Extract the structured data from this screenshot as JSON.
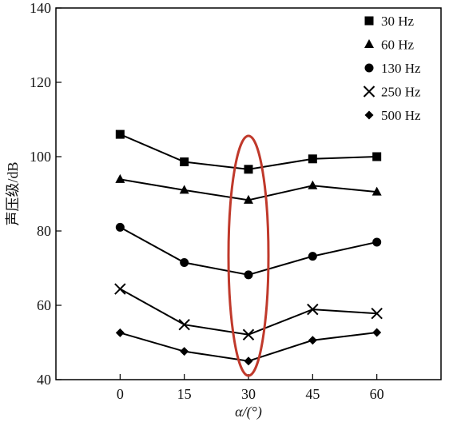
{
  "chart_data": {
    "type": "line",
    "title": "",
    "xlabel": "α/(°)",
    "ylabel": "声压级/dB",
    "x": [
      0,
      15,
      30,
      45,
      60
    ],
    "xlim": [
      -15,
      75
    ],
    "ylim": [
      40,
      140
    ],
    "xticks": [
      "0",
      "15",
      "30",
      "45",
      "60"
    ],
    "yticks": [
      "40",
      "60",
      "80",
      "100",
      "120",
      "140"
    ],
    "grid": false,
    "legend_position": "top-right",
    "series": [
      {
        "name": "30 Hz",
        "marker": "square",
        "values": [
          106,
          98.6,
          96.6,
          99.4,
          100.0
        ]
      },
      {
        "name": "60 Hz",
        "marker": "triangle",
        "values": [
          93.9,
          91.0,
          88.3,
          92.2,
          90.5
        ]
      },
      {
        "name": "130 Hz",
        "marker": "circle",
        "values": [
          81.0,
          71.5,
          68.2,
          73.2,
          77.0
        ]
      },
      {
        "name": "250 Hz",
        "marker": "x",
        "values": [
          64.4,
          54.8,
          52.1,
          58.9,
          57.8
        ]
      },
      {
        "name": "500 Hz",
        "marker": "diamond",
        "values": [
          52.6,
          47.6,
          45.0,
          50.6,
          52.7
        ]
      }
    ],
    "annotation": {
      "shape": "ellipse",
      "at_x": 30,
      "color": "#c0392b"
    },
    "line_color": "#000000"
  }
}
